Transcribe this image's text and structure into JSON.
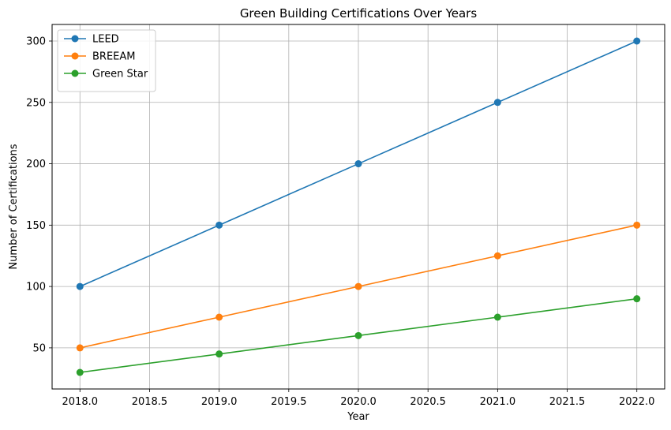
{
  "chart_data": {
    "type": "line",
    "title": "Green Building Certifications Over Years",
    "xlabel": "Year",
    "ylabel": "Number of Certifications",
    "x": [
      2018,
      2019,
      2020,
      2021,
      2022
    ],
    "xlim": [
      2017.8,
      2022.2
    ],
    "ylim": [
      16.5,
      313.5
    ],
    "xticks": [
      "2018.0",
      "2018.5",
      "2019.0",
      "2019.5",
      "2020.0",
      "2020.5",
      "2021.0",
      "2021.5",
      "2022.0"
    ],
    "xtick_values": [
      2018.0,
      2018.5,
      2019.0,
      2019.5,
      2020.0,
      2020.5,
      2021.0,
      2021.5,
      2022.0
    ],
    "yticks": [
      "50",
      "100",
      "150",
      "200",
      "250",
      "300"
    ],
    "ytick_values": [
      50,
      100,
      150,
      200,
      250,
      300
    ],
    "grid": true,
    "legend_position": "top-left",
    "series": [
      {
        "name": "LEED",
        "color": "#1f77b4",
        "values": [
          100,
          150,
          200,
          250,
          300
        ]
      },
      {
        "name": "BREEAM",
        "color": "#ff7f0e",
        "values": [
          50,
          75,
          100,
          125,
          150
        ]
      },
      {
        "name": "Green Star",
        "color": "#2ca02c",
        "values": [
          30,
          45,
          60,
          75,
          90
        ]
      }
    ]
  }
}
